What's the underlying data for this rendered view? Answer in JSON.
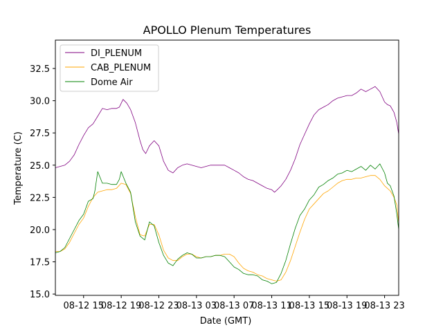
{
  "chart_data": {
    "type": "line",
    "title": "APOLLO Plenum Temperatures",
    "xlabel": "Date (GMT)",
    "ylabel": "Temperature (C)",
    "x_unit": "hours since 08-12 12:00 GMT",
    "xlim": [
      0,
      36.5
    ],
    "ylim": [
      14.9,
      34.7
    ],
    "grid": false,
    "legend_position": "top-left",
    "x_ticks": [
      {
        "x": 3,
        "label": "08-12 15"
      },
      {
        "x": 7,
        "label": "08-12 19"
      },
      {
        "x": 11,
        "label": "08-12 23"
      },
      {
        "x": 15,
        "label": "08-13 03"
      },
      {
        "x": 19,
        "label": "08-13 07"
      },
      {
        "x": 23,
        "label": "08-13 11"
      },
      {
        "x": 27,
        "label": "08-13 15"
      },
      {
        "x": 31,
        "label": "08-13 19"
      },
      {
        "x": 35,
        "label": "08-13 23"
      }
    ],
    "y_ticks": [
      {
        "y": 15.0,
        "label": "15.0"
      },
      {
        "y": 17.5,
        "label": "17.5"
      },
      {
        "y": 20.0,
        "label": "20.0"
      },
      {
        "y": 22.5,
        "label": "22.5"
      },
      {
        "y": 25.0,
        "label": "25.0"
      },
      {
        "y": 27.5,
        "label": "27.5"
      },
      {
        "y": 30.0,
        "label": "30.0"
      },
      {
        "y": 32.5,
        "label": "32.5"
      }
    ],
    "series": [
      {
        "name": "DI_PLENUM",
        "color": "#800080",
        "x": [
          0,
          0.5,
          1,
          1.5,
          2,
          2.5,
          3,
          3.5,
          4,
          4.5,
          5,
          5.5,
          6,
          6.5,
          6.8,
          7.2,
          7.6,
          8,
          8.5,
          9,
          9.3,
          9.6,
          10,
          10.5,
          11,
          11.5,
          12,
          12.5,
          13,
          13.5,
          14,
          14.5,
          15,
          15.5,
          16,
          16.5,
          17,
          17.5,
          18,
          18.5,
          19,
          19.5,
          20,
          20.5,
          21,
          21.5,
          22,
          22.5,
          23,
          23.3,
          23.6,
          24,
          24.5,
          25,
          25.5,
          26,
          26.5,
          27,
          27.5,
          28,
          28.5,
          29,
          29.5,
          30,
          30.5,
          31,
          31.5,
          32,
          32.5,
          33,
          33.5,
          34,
          34.5,
          35,
          35.3,
          35.6,
          36,
          36.3,
          36.5
        ],
        "y": [
          24.8,
          24.9,
          25.0,
          25.3,
          25.8,
          26.6,
          27.3,
          27.9,
          28.2,
          28.8,
          29.4,
          29.3,
          29.4,
          29.4,
          29.5,
          30.1,
          29.8,
          29.3,
          28.3,
          26.9,
          26.2,
          25.9,
          26.5,
          26.9,
          26.5,
          25.3,
          24.6,
          24.4,
          24.8,
          25.0,
          25.1,
          25.0,
          24.9,
          24.8,
          24.9,
          25.0,
          25.0,
          25.0,
          25.0,
          24.8,
          24.6,
          24.4,
          24.1,
          23.9,
          23.8,
          23.6,
          23.4,
          23.2,
          23.1,
          22.9,
          23.1,
          23.4,
          23.9,
          24.6,
          25.5,
          26.6,
          27.4,
          28.2,
          28.9,
          29.3,
          29.5,
          29.7,
          30.0,
          30.2,
          30.3,
          30.4,
          30.4,
          30.6,
          30.9,
          30.7,
          30.9,
          31.1,
          30.7,
          29.9,
          29.7,
          29.6,
          29.1,
          28.3,
          27.4
        ]
      },
      {
        "name": "CAB_PLENUM",
        "color": "#ffa500",
        "x": [
          0,
          0.5,
          1,
          1.5,
          2,
          2.5,
          3,
          3.5,
          4,
          4.5,
          5,
          5.5,
          6,
          6.5,
          7,
          7.5,
          8,
          8.5,
          9,
          9.5,
          10,
          10.5,
          11,
          11.5,
          12,
          12.5,
          13,
          13.5,
          14,
          14.5,
          15,
          15.5,
          16,
          16.5,
          17,
          17.5,
          18,
          18.5,
          19,
          19.5,
          20,
          20.5,
          21,
          21.5,
          22,
          22.5,
          23,
          23.5,
          24,
          24.5,
          25,
          25.5,
          26,
          26.5,
          27,
          27.5,
          28,
          28.5,
          29,
          29.5,
          30,
          30.5,
          31,
          31.5,
          32,
          32.5,
          33,
          33.5,
          34,
          34.5,
          35,
          35.3,
          35.6,
          36,
          36.3,
          36.5
        ],
        "y": [
          18.3,
          18.3,
          18.5,
          19.0,
          19.7,
          20.4,
          20.9,
          21.8,
          22.5,
          22.9,
          23.0,
          23.1,
          23.1,
          23.2,
          23.6,
          23.5,
          22.8,
          21.0,
          19.6,
          19.5,
          20.4,
          20.4,
          19.6,
          18.4,
          17.8,
          17.6,
          17.6,
          17.9,
          18.1,
          18.1,
          17.9,
          17.8,
          17.9,
          17.9,
          18.0,
          18.0,
          18.1,
          18.1,
          17.9,
          17.4,
          17.0,
          16.8,
          16.7,
          16.5,
          16.4,
          16.2,
          16.1,
          16.0,
          16.1,
          16.7,
          17.6,
          18.7,
          19.8,
          20.8,
          21.6,
          22.0,
          22.4,
          22.8,
          23.0,
          23.3,
          23.6,
          23.8,
          23.9,
          23.9,
          24.0,
          24.0,
          24.1,
          24.2,
          24.2,
          23.9,
          23.4,
          23.2,
          23.0,
          22.5,
          21.9,
          20.5
        ]
      },
      {
        "name": "Dome Air",
        "color": "#008000",
        "x": [
          0,
          0.5,
          1,
          1.5,
          2,
          2.5,
          3,
          3.5,
          4,
          4.2,
          4.5,
          5,
          5.5,
          6,
          6.5,
          6.8,
          7,
          7.5,
          8,
          8.5,
          9,
          9.5,
          10,
          10.5,
          11,
          11.5,
          12,
          12.5,
          13,
          13.5,
          14,
          14.5,
          15,
          15.5,
          16,
          16.5,
          17,
          17.5,
          18,
          18.5,
          19,
          19.5,
          20,
          20.5,
          21,
          21.5,
          22,
          22.5,
          23,
          23.5,
          24,
          24.5,
          25,
          25.5,
          26,
          26.5,
          27,
          27.5,
          28,
          28.5,
          29,
          29.5,
          30,
          30.5,
          31,
          31.5,
          32,
          32.5,
          33,
          33.5,
          34,
          34.5,
          35,
          35.3,
          35.6,
          36,
          36.3,
          36.5
        ],
        "y": [
          18.2,
          18.3,
          18.6,
          19.3,
          20.0,
          20.7,
          21.2,
          22.2,
          22.4,
          23.0,
          24.5,
          23.6,
          23.6,
          23.5,
          23.5,
          23.9,
          24.5,
          23.6,
          22.9,
          20.6,
          19.5,
          19.2,
          20.6,
          20.3,
          19.0,
          18.0,
          17.4,
          17.2,
          17.7,
          18.0,
          18.2,
          18.1,
          17.8,
          17.8,
          17.9,
          17.9,
          18.0,
          18.0,
          17.9,
          17.5,
          17.1,
          16.9,
          16.6,
          16.5,
          16.5,
          16.4,
          16.1,
          16.0,
          15.8,
          15.9,
          16.6,
          17.6,
          18.9,
          20.1,
          21.1,
          21.6,
          22.3,
          22.7,
          23.3,
          23.5,
          23.8,
          24.0,
          24.3,
          24.4,
          24.6,
          24.5,
          24.7,
          24.9,
          24.6,
          25.0,
          24.7,
          25.1,
          24.4,
          23.6,
          23.4,
          22.6,
          21.2,
          20.0
        ]
      }
    ]
  }
}
